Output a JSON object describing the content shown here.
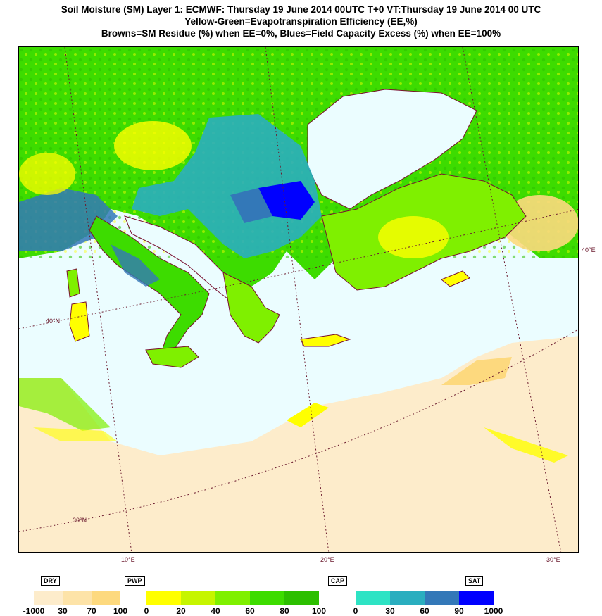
{
  "title": {
    "line1": "Soil Moisture (SM) Layer 1: ECMWF: Thursday 19 June 2014 00UTC   T+0  VT:Thursday  19 June 2014  00 UTC",
    "line2": "Yellow-Green=Evapotranspiration Efficiency (EE,%)",
    "line3": "Browns=SM Residue (%) when EE=0%, Blues=Field Capacity Excess (%) when EE=100%"
  },
  "map": {
    "lon_labels": [
      "10°E",
      "20°E",
      "30°E"
    ],
    "lat_labels": [
      "40°N",
      "30°N",
      "40°E"
    ],
    "colors": {
      "sea": "#ebfdff",
      "coast": "#7a1030",
      "grid": "#6b1a2e"
    }
  },
  "legend": {
    "markers": [
      "DRY",
      "PWP",
      "CAP",
      "SAT"
    ],
    "brown": {
      "labels": [
        "-1000",
        "30",
        "70",
        "100"
      ],
      "colors": [
        "#fdeccb",
        "#fde3a8",
        "#fdd97e"
      ]
    },
    "green": {
      "labels": [
        "0",
        "20",
        "40",
        "60",
        "80",
        "100"
      ],
      "colors": [
        "#ffff00",
        "#c6f500",
        "#7ff000",
        "#3ddc00",
        "#2cbf00"
      ]
    },
    "blue": {
      "labels": [
        "0",
        "30",
        "60",
        "90",
        "1000"
      ],
      "colors": [
        "#2ee3c4",
        "#2aaebf",
        "#3378b8",
        "#0000ff"
      ]
    }
  }
}
